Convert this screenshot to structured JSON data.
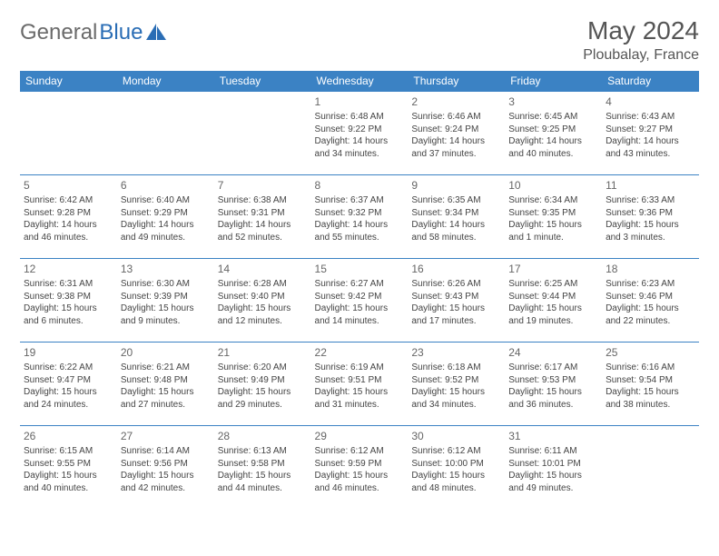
{
  "logo": {
    "word1": "General",
    "word2": "Blue"
  },
  "colors": {
    "header_bg": "#3b82c4",
    "header_text": "#ffffff",
    "border": "#3b82c4",
    "logo_gray": "#6a6a6a",
    "logo_blue": "#2a6db5",
    "text": "#444444"
  },
  "title": "May 2024",
  "location": "Ploubalay, France",
  "weekdays": [
    "Sunday",
    "Monday",
    "Tuesday",
    "Wednesday",
    "Thursday",
    "Friday",
    "Saturday"
  ],
  "layout": {
    "first_weekday_index": 3,
    "days_in_month": 31
  },
  "days": {
    "1": {
      "sunrise": "6:48 AM",
      "sunset": "9:22 PM",
      "daylight_h": 14,
      "daylight_m": 34
    },
    "2": {
      "sunrise": "6:46 AM",
      "sunset": "9:24 PM",
      "daylight_h": 14,
      "daylight_m": 37
    },
    "3": {
      "sunrise": "6:45 AM",
      "sunset": "9:25 PM",
      "daylight_h": 14,
      "daylight_m": 40
    },
    "4": {
      "sunrise": "6:43 AM",
      "sunset": "9:27 PM",
      "daylight_h": 14,
      "daylight_m": 43
    },
    "5": {
      "sunrise": "6:42 AM",
      "sunset": "9:28 PM",
      "daylight_h": 14,
      "daylight_m": 46
    },
    "6": {
      "sunrise": "6:40 AM",
      "sunset": "9:29 PM",
      "daylight_h": 14,
      "daylight_m": 49
    },
    "7": {
      "sunrise": "6:38 AM",
      "sunset": "9:31 PM",
      "daylight_h": 14,
      "daylight_m": 52
    },
    "8": {
      "sunrise": "6:37 AM",
      "sunset": "9:32 PM",
      "daylight_h": 14,
      "daylight_m": 55
    },
    "9": {
      "sunrise": "6:35 AM",
      "sunset": "9:34 PM",
      "daylight_h": 14,
      "daylight_m": 58
    },
    "10": {
      "sunrise": "6:34 AM",
      "sunset": "9:35 PM",
      "daylight_h": 15,
      "daylight_m": 1
    },
    "11": {
      "sunrise": "6:33 AM",
      "sunset": "9:36 PM",
      "daylight_h": 15,
      "daylight_m": 3
    },
    "12": {
      "sunrise": "6:31 AM",
      "sunset": "9:38 PM",
      "daylight_h": 15,
      "daylight_m": 6
    },
    "13": {
      "sunrise": "6:30 AM",
      "sunset": "9:39 PM",
      "daylight_h": 15,
      "daylight_m": 9
    },
    "14": {
      "sunrise": "6:28 AM",
      "sunset": "9:40 PM",
      "daylight_h": 15,
      "daylight_m": 12
    },
    "15": {
      "sunrise": "6:27 AM",
      "sunset": "9:42 PM",
      "daylight_h": 15,
      "daylight_m": 14
    },
    "16": {
      "sunrise": "6:26 AM",
      "sunset": "9:43 PM",
      "daylight_h": 15,
      "daylight_m": 17
    },
    "17": {
      "sunrise": "6:25 AM",
      "sunset": "9:44 PM",
      "daylight_h": 15,
      "daylight_m": 19
    },
    "18": {
      "sunrise": "6:23 AM",
      "sunset": "9:46 PM",
      "daylight_h": 15,
      "daylight_m": 22
    },
    "19": {
      "sunrise": "6:22 AM",
      "sunset": "9:47 PM",
      "daylight_h": 15,
      "daylight_m": 24
    },
    "20": {
      "sunrise": "6:21 AM",
      "sunset": "9:48 PM",
      "daylight_h": 15,
      "daylight_m": 27
    },
    "21": {
      "sunrise": "6:20 AM",
      "sunset": "9:49 PM",
      "daylight_h": 15,
      "daylight_m": 29
    },
    "22": {
      "sunrise": "6:19 AM",
      "sunset": "9:51 PM",
      "daylight_h": 15,
      "daylight_m": 31
    },
    "23": {
      "sunrise": "6:18 AM",
      "sunset": "9:52 PM",
      "daylight_h": 15,
      "daylight_m": 34
    },
    "24": {
      "sunrise": "6:17 AM",
      "sunset": "9:53 PM",
      "daylight_h": 15,
      "daylight_m": 36
    },
    "25": {
      "sunrise": "6:16 AM",
      "sunset": "9:54 PM",
      "daylight_h": 15,
      "daylight_m": 38
    },
    "26": {
      "sunrise": "6:15 AM",
      "sunset": "9:55 PM",
      "daylight_h": 15,
      "daylight_m": 40
    },
    "27": {
      "sunrise": "6:14 AM",
      "sunset": "9:56 PM",
      "daylight_h": 15,
      "daylight_m": 42
    },
    "28": {
      "sunrise": "6:13 AM",
      "sunset": "9:58 PM",
      "daylight_h": 15,
      "daylight_m": 44
    },
    "29": {
      "sunrise": "6:12 AM",
      "sunset": "9:59 PM",
      "daylight_h": 15,
      "daylight_m": 46
    },
    "30": {
      "sunrise": "6:12 AM",
      "sunset": "10:00 PM",
      "daylight_h": 15,
      "daylight_m": 48
    },
    "31": {
      "sunrise": "6:11 AM",
      "sunset": "10:01 PM",
      "daylight_h": 15,
      "daylight_m": 49
    }
  },
  "labels": {
    "sunrise_prefix": "Sunrise: ",
    "sunset_prefix": "Sunset: ",
    "daylight_prefix": "Daylight: ",
    "hours_word": " hours",
    "and_word": "and ",
    "minute_word": " minute.",
    "minutes_word": " minutes."
  }
}
